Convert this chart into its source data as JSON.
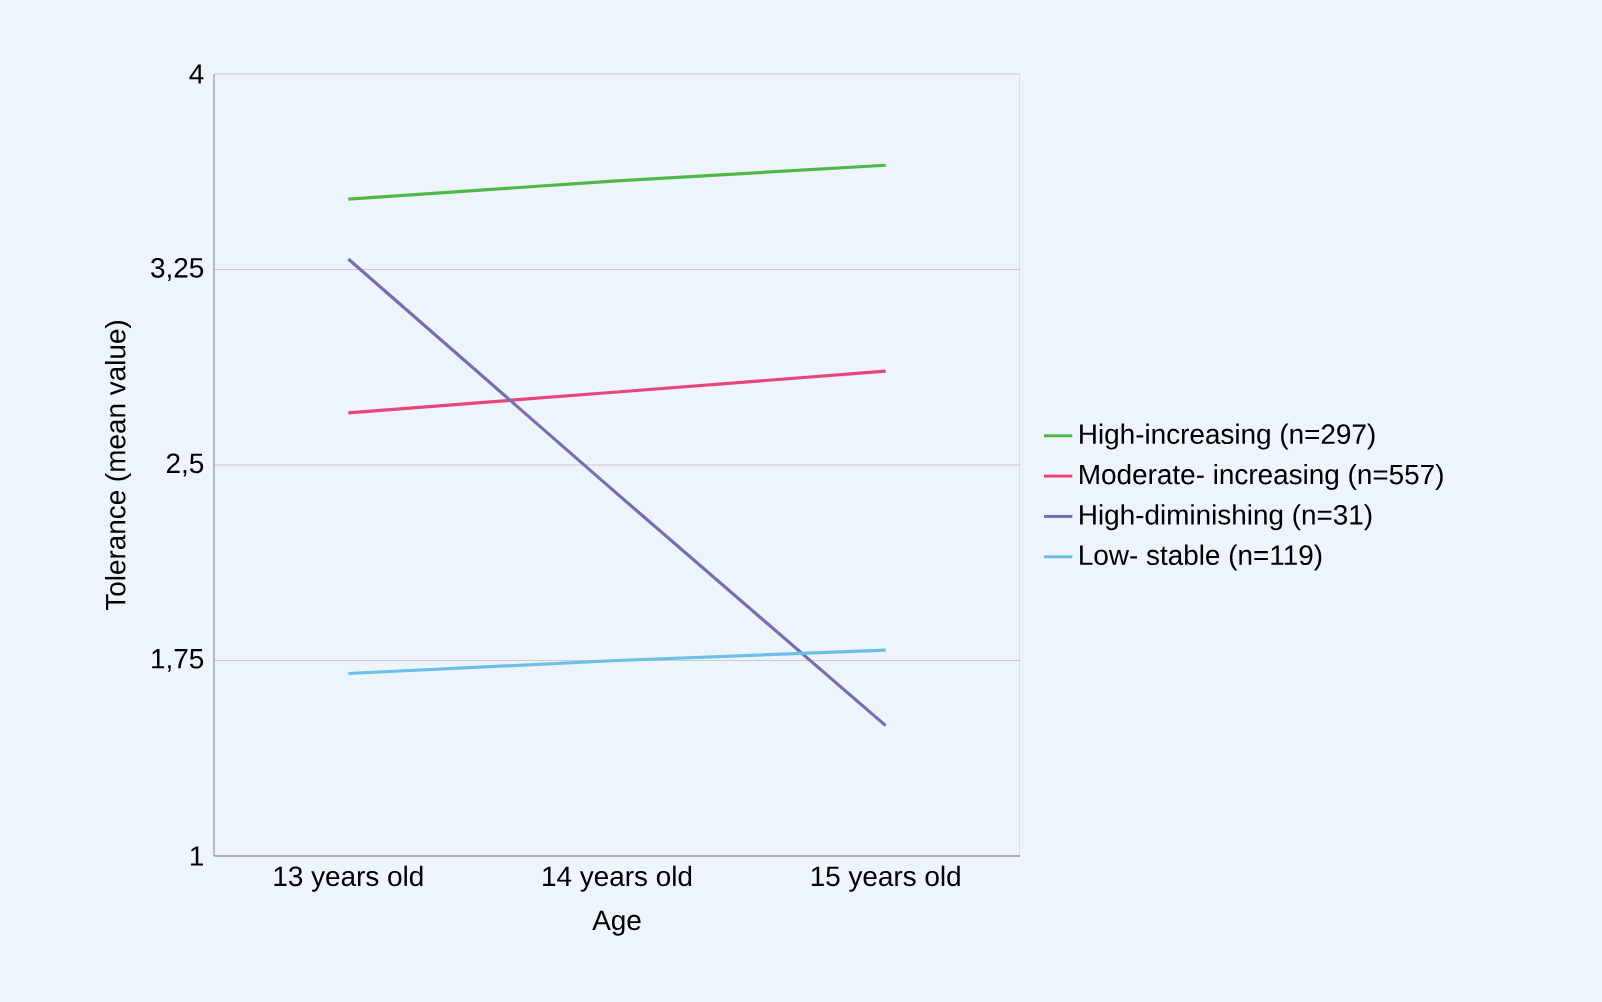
{
  "chart_data": {
    "type": "line",
    "xlabel": "Age",
    "ylabel": "Tolerance (mean value)",
    "categories": [
      "13 years old",
      "14 years old",
      "15 years old"
    ],
    "series": [
      {
        "name": "High-increasing (n=297)",
        "color": "#4cb848",
        "values": [
          3.52,
          3.59,
          3.65
        ]
      },
      {
        "name": "Moderate- increasing (n=557)",
        "color": "#e8457a",
        "values": [
          2.7,
          2.78,
          2.86
        ]
      },
      {
        "name": "High-diminishing (n=31)",
        "color": "#7470b0",
        "values": [
          3.29,
          2.39,
          1.5
        ]
      },
      {
        "name": "Low- stable (n=119)",
        "color": "#6cc0e8",
        "values": [
          1.7,
          1.75,
          1.79
        ]
      }
    ],
    "ylim": [
      1,
      4
    ],
    "yticks": [
      1,
      {
        "value": 1.75,
        "label": "1,75"
      },
      {
        "value": 2.5,
        "label": "2,5"
      },
      {
        "value": 3.25,
        "label": "3,25"
      },
      4
    ],
    "grid": "y",
    "legend": "right"
  }
}
